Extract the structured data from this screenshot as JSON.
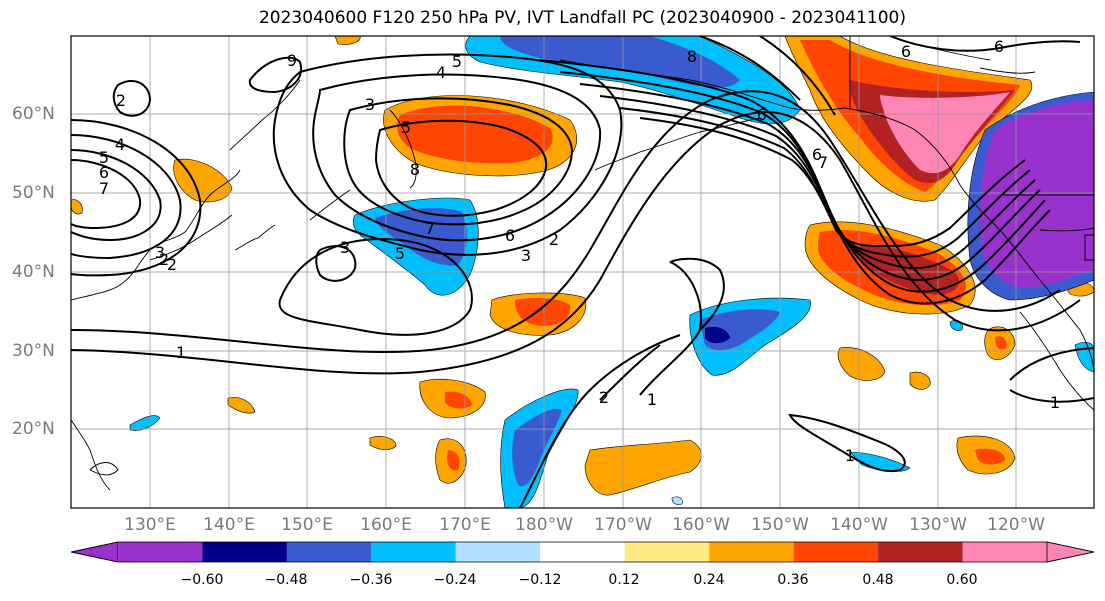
{
  "title": "2023040600 F120 250 hPa PV, IVT Landfall PC (2023040900 - 2023041100)",
  "lat_labels": [
    "60°N",
    "50°N",
    "40°N",
    "30°N",
    "20°N"
  ],
  "lon_labels": [
    "130°E",
    "140°E",
    "150°E",
    "160°E",
    "170°E",
    "180°W",
    "170°W",
    "160°W",
    "150°W",
    "140°W",
    "130°W",
    "120°W"
  ],
  "colorbar": {
    "ticks": [
      "−0.60",
      "−0.48",
      "−0.36",
      "−0.24",
      "−0.12",
      "0.12",
      "0.24",
      "0.36",
      "0.48",
      "0.60"
    ],
    "colors": [
      "#9932CC",
      "#00008B",
      "#3A5BD0",
      "#00BFFF",
      "#B0E2FF",
      "#FFFFFF",
      "#FFEB85",
      "#FFA500",
      "#FF4500",
      "#B22222",
      "#FF85B5"
    ]
  },
  "contour_labels": [
    "2",
    "3",
    "4",
    "5",
    "5",
    "6",
    "7",
    "9",
    "8",
    "5",
    "8",
    "6",
    "7",
    "3",
    "6",
    "3",
    "2",
    "3",
    "7",
    "5",
    "4",
    "6",
    "2",
    "1",
    "2",
    "1",
    "6",
    "6",
    "1",
    "1",
    "2"
  ]
}
